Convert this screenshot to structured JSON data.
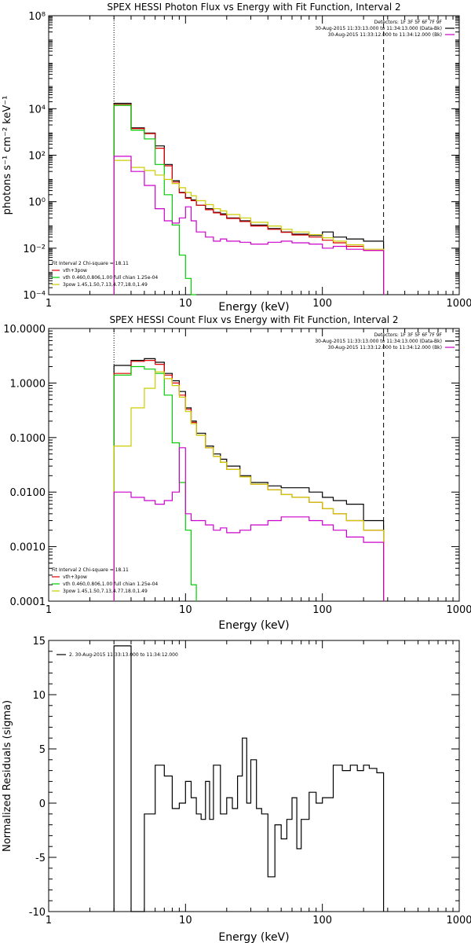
{
  "chart_data": [
    {
      "type": "line",
      "title": "SPEX HESSI Photon Flux vs Energy with Fit Function, Interval 2",
      "xlabel": "Energy (keV)",
      "ylabel": "photons s⁻¹ cm⁻² keV⁻¹",
      "xscale": "log",
      "yscale": "log",
      "xlim": [
        1,
        1000
      ],
      "ylim": [
        0.0001,
        100000000
      ],
      "x_ticks": [
        1,
        10,
        100,
        1000
      ],
      "x_tick_labels": [
        "1",
        "10",
        "100",
        "1000"
      ],
      "y_ticks": [
        0.0001,
        0.01,
        1,
        100,
        10000,
        100000000
      ],
      "y_tick_labels": [
        "10⁻⁴",
        "10⁻²",
        "10⁰",
        "10²",
        "10⁴",
        "10⁸"
      ],
      "legend_top_right": [
        "Detectors: 1F 3F 5F 6F 7F 9F",
        "30-Aug-2015 11:33:13.000 to 11:34:13.000 (Data-Bk)",
        "30-Aug-2015 11:33:12.000 to 11:34:12.000 (Bk)"
      ],
      "legend_bottom_left": [
        "Fit Interval 2   Chi-square = 18.11",
        "vth+3pow",
        "vth 0.460,0.806,1.00  full chian 1.25e-04",
        "3pow 1.45,1.50,7.13,4.77,18.0,1.49"
      ],
      "vlines": [
        {
          "x": 3,
          "style": "dotted"
        },
        {
          "x": 280,
          "style": "dashed"
        }
      ],
      "series": [
        {
          "name": "Data-Bk",
          "color": "#000000",
          "edges": [
            3,
            4,
            5,
            6,
            7,
            8,
            9,
            10,
            11,
            12,
            14,
            16,
            18,
            20,
            25,
            30,
            40,
            50,
            60,
            80,
            100,
            120,
            150,
            200,
            280
          ],
          "values": [
            17000,
            1500,
            900,
            250,
            40,
            8,
            2.5,
            1.5,
            1.2,
            0.7,
            0.5,
            0.35,
            0.3,
            0.2,
            0.15,
            0.1,
            0.07,
            0.05,
            0.04,
            0.035,
            0.05,
            0.03,
            0.025,
            0.02
          ]
        },
        {
          "name": "vth+3pow",
          "color": "#dd0000",
          "edges": [
            3,
            4,
            5,
            6,
            7,
            8,
            9,
            10,
            11,
            12,
            14,
            16,
            18,
            20,
            25,
            30,
            40,
            50,
            60,
            80,
            100,
            120,
            150,
            200,
            280
          ],
          "values": [
            15000,
            1400,
            850,
            200,
            35,
            7,
            2.4,
            1.4,
            1.1,
            0.7,
            0.45,
            0.33,
            0.27,
            0.19,
            0.14,
            0.09,
            0.065,
            0.048,
            0.037,
            0.03,
            0.022,
            0.017,
            0.012,
            0.008
          ]
        },
        {
          "name": "vth",
          "color": "#00cc00",
          "edges": [
            3,
            4,
            5,
            6,
            7,
            8,
            9,
            10,
            11,
            12
          ],
          "values": [
            14000,
            1200,
            500,
            40,
            2,
            0.1,
            0.005,
            0.0005,
            0.0001
          ]
        },
        {
          "name": "3pow",
          "color": "#cccc00",
          "edges": [
            3,
            4,
            5,
            6,
            7,
            8,
            9,
            10,
            11,
            12,
            14,
            16,
            18,
            20,
            25,
            30,
            40,
            50,
            60,
            80,
            100,
            120,
            150,
            200,
            280
          ],
          "values": [
            60,
            30,
            22,
            14,
            9,
            6,
            4,
            2.5,
            1.8,
            1.1,
            0.75,
            0.5,
            0.4,
            0.28,
            0.2,
            0.13,
            0.09,
            0.065,
            0.05,
            0.038,
            0.028,
            0.02,
            0.014,
            0.009
          ]
        },
        {
          "name": "Bk",
          "color": "#cc00cc",
          "edges": [
            3,
            4,
            5,
            6,
            7,
            8,
            9,
            10,
            11,
            12,
            14,
            16,
            18,
            20,
            25,
            30,
            40,
            50,
            60,
            80,
            100,
            120,
            150,
            200,
            280
          ],
          "values": [
            90,
            20,
            5,
            0.5,
            0.15,
            0.12,
            0.2,
            0.6,
            0.15,
            0.05,
            0.03,
            0.02,
            0.025,
            0.02,
            0.018,
            0.015,
            0.018,
            0.02,
            0.017,
            0.015,
            0.01,
            0.012,
            0.009,
            0.008
          ]
        }
      ]
    },
    {
      "type": "line",
      "title": "SPEX HESSI Count Flux vs Energy with Fit Function, Interval 2",
      "xlabel": "Energy (keV)",
      "ylabel": "",
      "xscale": "log",
      "yscale": "log",
      "xlim": [
        1,
        1000
      ],
      "ylim": [
        0.0001,
        10
      ],
      "x_ticks": [
        1,
        10,
        100,
        1000
      ],
      "x_tick_labels": [
        "1",
        "10",
        "100",
        "1000"
      ],
      "y_ticks": [
        0.0001,
        0.001,
        0.01,
        0.1,
        1,
        10
      ],
      "y_tick_labels": [
        "0.0001",
        "0.0010",
        "0.0100",
        "0.1000",
        "1.0000",
        "10.0000"
      ],
      "legend_top_right": [
        "Detectors: 1F 3F 5F 6F 7F 9F",
        "30-Aug-2015 11:33:13.000 to 11:34:13.000 (Data-Bk)",
        "30-Aug-2015 11:33:12.000 to 11:34:12.000 (Bk)"
      ],
      "legend_bottom_left": [
        "Fit Interval 2   Chi-square = 18.11",
        "vth+3pow",
        "vth 0.460,0.806,1.00  full chian 1.25e-04",
        "3pow 1.45,1.50,7.13,4.77,18.0,1.49"
      ],
      "vlines": [
        {
          "x": 3,
          "style": "dotted"
        },
        {
          "x": 280,
          "style": "dashed"
        }
      ],
      "series": [
        {
          "name": "Data-Bk",
          "color": "#000000",
          "edges": [
            3,
            4,
            5,
            6,
            7,
            8,
            9,
            10,
            11,
            12,
            14,
            16,
            18,
            20,
            25,
            30,
            40,
            50,
            60,
            80,
            100,
            120,
            150,
            200,
            280
          ],
          "values": [
            2.1,
            2.6,
            2.8,
            2.4,
            1.5,
            1.1,
            0.7,
            0.35,
            0.2,
            0.12,
            0.07,
            0.05,
            0.04,
            0.03,
            0.02,
            0.015,
            0.013,
            0.012,
            0.012,
            0.01,
            0.008,
            0.007,
            0.006,
            0.003
          ]
        },
        {
          "name": "vth+3pow",
          "color": "#dd0000",
          "edges": [
            3,
            4,
            5,
            6,
            7,
            8,
            9,
            10,
            11,
            12,
            14,
            16,
            18,
            20,
            25,
            30,
            40,
            50,
            60,
            80,
            100,
            120,
            150,
            200,
            280
          ],
          "values": [
            1.5,
            2.5,
            2.6,
            2.2,
            1.4,
            1.0,
            0.6,
            0.33,
            0.19,
            0.11,
            0.065,
            0.045,
            0.035,
            0.026,
            0.019,
            0.014,
            0.011,
            0.009,
            0.008,
            0.0065,
            0.005,
            0.004,
            0.003,
            0.002
          ]
        },
        {
          "name": "vth",
          "color": "#00cc00",
          "edges": [
            3,
            4,
            5,
            6,
            7,
            8,
            9,
            10,
            11,
            12
          ],
          "values": [
            1.4,
            2.0,
            1.8,
            1.5,
            0.6,
            0.08,
            0.015,
            0.002,
            0.0002
          ]
        },
        {
          "name": "3pow",
          "color": "#cccc00",
          "edges": [
            3,
            4,
            5,
            6,
            7,
            8,
            9,
            10,
            11,
            12,
            14,
            16,
            18,
            20,
            25,
            30,
            40,
            50,
            60,
            80,
            100,
            120,
            150,
            200,
            280
          ],
          "values": [
            0.07,
            0.35,
            0.8,
            1.6,
            1.2,
            0.9,
            0.55,
            0.3,
            0.18,
            0.11,
            0.065,
            0.045,
            0.035,
            0.026,
            0.019,
            0.014,
            0.011,
            0.009,
            0.008,
            0.0065,
            0.005,
            0.004,
            0.003,
            0.002
          ]
        },
        {
          "name": "Bk",
          "color": "#cc00cc",
          "edges": [
            3,
            4,
            5,
            6,
            7,
            8,
            9,
            10,
            11,
            12,
            14,
            16,
            18,
            20,
            25,
            30,
            40,
            50,
            60,
            80,
            100,
            120,
            150,
            200,
            280
          ],
          "values": [
            0.01,
            0.008,
            0.007,
            0.006,
            0.007,
            0.01,
            0.065,
            0.004,
            0.003,
            0.003,
            0.0025,
            0.002,
            0.0022,
            0.0018,
            0.002,
            0.0025,
            0.003,
            0.0035,
            0.0035,
            0.003,
            0.0025,
            0.002,
            0.0015,
            0.0012
          ]
        }
      ]
    },
    {
      "type": "line",
      "title": "",
      "xlabel": "Energy (keV)",
      "ylabel": "Normalized Residuals (sigma)",
      "xscale": "log",
      "yscale": "linear",
      "xlim": [
        1,
        1000
      ],
      "ylim": [
        -10,
        15
      ],
      "x_ticks": [
        1,
        10,
        100,
        1000
      ],
      "x_tick_labels": [
        "1",
        "10",
        "100",
        "1000"
      ],
      "y_ticks": [
        -10,
        -5,
        0,
        5,
        10,
        15
      ],
      "y_tick_labels": [
        "-10",
        "-5",
        "0",
        "5",
        "10",
        "15"
      ],
      "legend_top_left": [
        "2. 30-Aug-2015 11:33:13.000 to 11:34:12.000"
      ],
      "series": [
        {
          "name": "2. 30-Aug-2015 11:33:13.000 to 11:34:12.000",
          "color": "#000000",
          "edges": [
            3,
            4,
            5,
            6,
            7,
            8,
            9,
            10,
            11,
            12,
            13,
            14,
            15,
            16,
            18,
            20,
            22,
            24,
            26,
            28,
            30,
            33,
            36,
            40,
            45,
            50,
            55,
            60,
            65,
            70,
            80,
            90,
            100,
            110,
            120,
            140,
            160,
            180,
            200,
            220,
            250,
            280
          ],
          "values": [
            14.5,
            -10,
            -1,
            3.5,
            2.5,
            -0.5,
            0,
            2,
            0.5,
            -1,
            -1.5,
            2,
            -1.5,
            3.5,
            -1,
            0.5,
            -0.5,
            2.5,
            6,
            0,
            4,
            -0.5,
            -1,
            -6.8,
            -2,
            -3.3,
            -1.5,
            0.5,
            -4.2,
            -1.5,
            1,
            0,
            0.5,
            0.5,
            3.5,
            3,
            3.5,
            3,
            3.5,
            3.2,
            2.8
          ]
        }
      ]
    }
  ]
}
